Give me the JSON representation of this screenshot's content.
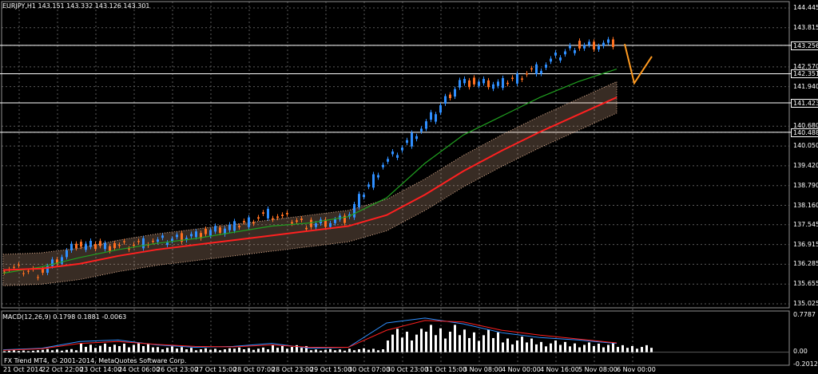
{
  "header": {
    "title": "EURJPY,H1  143.151 143.332 143.126 143.301"
  },
  "macd": {
    "title": "MACD(12,26,9) 0.1798 0.1881 -0.0063",
    "axis": [
      "0.7787",
      "0.00",
      "-0.2012"
    ]
  },
  "copyright": "FX Trend MT4, © 2001-2014, MetaQuotes Software Corp.",
  "price_axis": {
    "ticks": [
      "144.445",
      "143.815",
      "143.256",
      "142.570",
      "142.351",
      "141.940",
      "141.423",
      "140.680",
      "140.488",
      "140.050",
      "139.420",
      "138.790",
      "138.160",
      "137.545",
      "136.915",
      "136.285",
      "135.655",
      "135.025"
    ],
    "boxed": [
      "143.256",
      "142.351",
      "141.423",
      "140.488"
    ]
  },
  "time_axis": [
    "21 Oct 2014",
    "22 Oct 22:00",
    "23 Oct 14:00",
    "24 Oct 06:00",
    "26 Oct 23:00",
    "27 Oct 15:00",
    "28 Oct 07:00",
    "28 Oct 23:00",
    "29 Oct 15:00",
    "30 Oct 07:00",
    "30 Oct 23:00",
    "31 Oct 15:00",
    "3 Nov 08:00",
    "4 Nov 00:00",
    "4 Nov 16:00",
    "5 Nov 08:00",
    "6 Nov 00:00"
  ],
  "colors": {
    "background": "#000000",
    "grid": "#5a5a5a",
    "bull_candle": "#2f8fff",
    "bear_candle": "#ff7020",
    "ma_red": "#ff2020",
    "ma_green": "#20a020",
    "cloud": "#e0b090",
    "forecast": "#ff9a20"
  },
  "chart_data": {
    "type": "line",
    "symbol": "EURJPY",
    "timeframe": "H1",
    "ohlc_last": {
      "open": 143.151,
      "high": 143.332,
      "low": 143.126,
      "close": 143.301
    },
    "ylim": [
      135.025,
      144.445
    ],
    "price_path": [
      {
        "t": "21 Oct 2014",
        "price": 136.2
      },
      {
        "t": "22 Oct 22:00",
        "price": 136.0
      },
      {
        "t": "23 Oct 14:00",
        "price": 136.9
      },
      {
        "t": "24 Oct 06:00",
        "price": 136.85
      },
      {
        "t": "26 Oct 23:00",
        "price": 137.0
      },
      {
        "t": "27 Oct 15:00",
        "price": 137.2
      },
      {
        "t": "28 Oct 07:00",
        "price": 137.45
      },
      {
        "t": "28 Oct 23:00",
        "price": 137.9
      },
      {
        "t": "29 Oct 15:00",
        "price": 137.55
      },
      {
        "t": "30 Oct 07:00",
        "price": 137.7
      },
      {
        "t": "30 Oct 23:00",
        "price": 139.5
      },
      {
        "t": "31 Oct 15:00",
        "price": 140.6
      },
      {
        "t": "3 Nov 08:00",
        "price": 142.1
      },
      {
        "t": "4 Nov 00:00",
        "price": 142.0
      },
      {
        "t": "4 Nov 16:00",
        "price": 142.5
      },
      {
        "t": "5 Nov 08:00",
        "price": 143.25
      },
      {
        "t": "6 Nov 00:00",
        "price": 143.3
      }
    ],
    "ma_red": [
      136.1,
      136.15,
      136.3,
      136.55,
      136.75,
      136.9,
      137.05,
      137.2,
      137.35,
      137.5,
      137.85,
      138.5,
      139.25,
      139.9,
      140.5,
      141.05,
      141.6
    ],
    "ma_green": [
      136.0,
      136.2,
      136.5,
      136.75,
      136.95,
      137.1,
      137.3,
      137.5,
      137.6,
      137.8,
      138.4,
      139.5,
      140.4,
      141.0,
      141.6,
      142.1,
      142.5
    ],
    "forecast": [
      {
        "t": "6 Nov 00:00",
        "price": 143.3
      },
      {
        "t": "6 Nov 08:00",
        "price": 142.05
      },
      {
        "t": "6 Nov 20:00",
        "price": 142.9
      }
    ],
    "macd_main": [
      0.05,
      0.08,
      0.22,
      0.25,
      0.15,
      0.1,
      0.12,
      0.18,
      0.08,
      0.1,
      0.6,
      0.7,
      0.58,
      0.4,
      0.3,
      0.25,
      0.18
    ],
    "macd_signal": [
      0.04,
      0.07,
      0.18,
      0.22,
      0.16,
      0.12,
      0.11,
      0.15,
      0.1,
      0.1,
      0.45,
      0.65,
      0.62,
      0.45,
      0.35,
      0.27,
      0.19
    ],
    "macd_ylim": [
      -0.2012,
      0.7787
    ]
  }
}
